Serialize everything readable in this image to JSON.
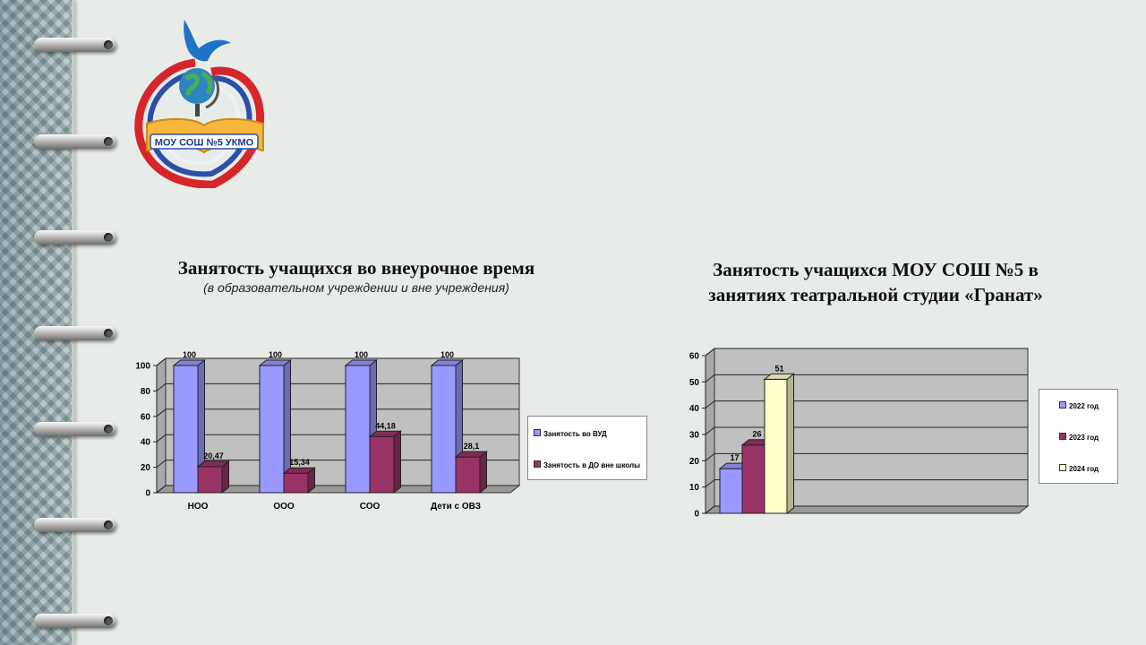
{
  "logo": {
    "text": "МОУ СОШ №5 УКМО"
  },
  "chart_data": [
    {
      "type": "bar",
      "title": "Занятость учащихся во внеурочное время",
      "subtitle": "(в образовательном учреждении и вне учреждения)",
      "categories": [
        "НОО",
        "ООО",
        "СОО",
        "Дети с ОВЗ"
      ],
      "series": [
        {
          "name": "Занятость  во ВУД",
          "values": [
            100,
            100,
            100,
            100
          ],
          "labels": [
            "100",
            "100",
            "100",
            "100"
          ],
          "color": "#9999ff"
        },
        {
          "name": "Занятость  в ДО вне школы",
          "values": [
            20.47,
            15.34,
            44.18,
            28.1
          ],
          "labels": [
            "20,47",
            "15,34",
            "44,18",
            "28,1"
          ],
          "color": "#993366"
        }
      ],
      "ylim": [
        0,
        100
      ],
      "yticks": [
        "0",
        "20",
        "40",
        "60",
        "80",
        "100"
      ],
      "grid": true,
      "legend": "right"
    },
    {
      "type": "bar",
      "title": "Занятость учащихся МОУ СОШ №5 в занятиях театральной студии «Гранат»",
      "title_lines": [
        "Занятость учащихся МОУ СОШ №5 в",
        "занятиях театральной студии «Гранат»"
      ],
      "categories": [
        ""
      ],
      "series": [
        {
          "name": "2022  год",
          "values": [
            17
          ],
          "labels": [
            "17"
          ],
          "color": "#9999ff"
        },
        {
          "name": "2023  год",
          "values": [
            26
          ],
          "labels": [
            "26"
          ],
          "color": "#993366"
        },
        {
          "name": "2024  год",
          "values": [
            51
          ],
          "labels": [
            "51"
          ],
          "color": "#ffffcc"
        }
      ],
      "ylim": [
        0,
        60
      ],
      "yticks": [
        "0",
        "10",
        "20",
        "30",
        "40",
        "50",
        "60"
      ],
      "grid": true,
      "legend": "right"
    }
  ]
}
